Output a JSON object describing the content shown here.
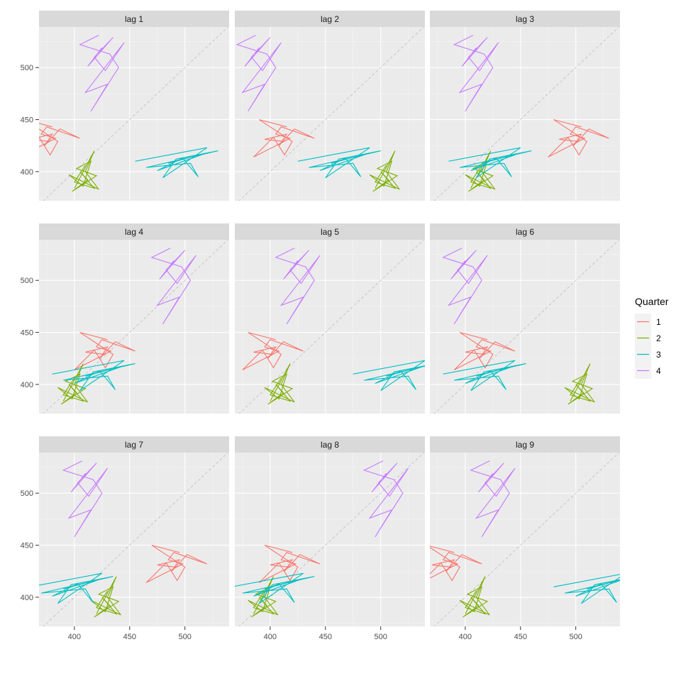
{
  "chart_data": {
    "type": "line",
    "facet_layout": "3x3",
    "panels": [
      "lag 1",
      "lag 2",
      "lag 3",
      "lag 4",
      "lag 5",
      "lag 6",
      "lag 7",
      "lag 8",
      "lag 9"
    ],
    "x_ticks": [
      400,
      450,
      500
    ],
    "y_ticks": [
      400,
      450,
      500
    ],
    "xlim": [
      368,
      540
    ],
    "ylim": [
      372,
      539
    ],
    "reference_line": "y = x (dashed grey)",
    "legend": {
      "title": "Quarter",
      "placement": "right",
      "entries": [
        {
          "name": "1",
          "color": "#F8766D"
        },
        {
          "name": "2",
          "color": "#7CAE00"
        },
        {
          "name": "3",
          "color": "#00BFC4"
        },
        {
          "name": "4",
          "color": "#C77CFF"
        }
      ]
    },
    "series_by_quarter": {
      "1": {
        "xy": [
          [
            405,
            443
          ],
          [
            380,
            450
          ],
          [
            410,
            429
          ],
          [
            403,
            416
          ],
          [
            393,
            433
          ],
          [
            375,
            414
          ],
          [
            408,
            432
          ],
          [
            395,
            436
          ],
          [
            400,
            443
          ],
          [
            430,
            432
          ],
          [
            412,
            441
          ],
          [
            398,
            425
          ],
          [
            405,
            436
          ],
          [
            385,
            431
          ],
          [
            402,
            429
          ]
        ]
      },
      "2": {
        "xy": [
          [
            400,
            384
          ],
          [
            418,
            420
          ],
          [
            410,
            400
          ],
          [
            422,
            383
          ],
          [
            395,
            397
          ],
          [
            408,
            386
          ],
          [
            415,
            410
          ],
          [
            402,
            403
          ],
          [
            420,
            396
          ],
          [
            398,
            381
          ],
          [
            412,
            392
          ],
          [
            405,
            400
          ],
          [
            418,
            384
          ],
          [
            400,
            390
          ],
          [
            410,
            406
          ]
        ]
      },
      "3": {
        "xy": [
          [
            455,
            410
          ],
          [
            520,
            423
          ],
          [
            480,
            394
          ],
          [
            492,
            412
          ],
          [
            530,
            420
          ],
          [
            465,
            404
          ],
          [
            505,
            408
          ],
          [
            512,
            395
          ],
          [
            498,
            413
          ],
          [
            475,
            401
          ],
          [
            520,
            418
          ],
          [
            485,
            408
          ]
        ]
      },
      "4": {
        "xy": [
          [
            422,
            531
          ],
          [
            405,
            522
          ],
          [
            432,
            513
          ],
          [
            440,
            500
          ],
          [
            415,
            458
          ],
          [
            430,
            484
          ],
          [
            410,
            476
          ],
          [
            445,
            524
          ],
          [
            428,
            497
          ],
          [
            418,
            510
          ],
          [
            435,
            529
          ],
          [
            412,
            501
          ],
          [
            425,
            519
          ]
        ]
      }
    },
    "panel_series": [
      {
        "1": {
          "x": [
            -25,
            0
          ],
          "y": [
            0,
            0
          ]
        },
        "2": {
          "x": [
            0,
            0
          ],
          "y": [
            0,
            0
          ]
        },
        "3": {
          "x": [
            0,
            0
          ],
          "y": [
            0,
            0
          ]
        },
        "4": {
          "x": [
            0,
            0
          ],
          "y": [
            0,
            0
          ]
        }
      },
      {
        "1": {
          "x": [
            10,
            0
          ],
          "y": [
            0,
            0
          ]
        },
        "2": {
          "x": [
            95,
            0
          ],
          "y": [
            0,
            0
          ]
        },
        "3": {
          "x": [
            -30,
            15
          ],
          "y": [
            0,
            0
          ]
        },
        "4": {
          "x": [
            -35,
            0
          ],
          "y": [
            0,
            0
          ]
        }
      },
      {
        "1": {
          "x": [
            100,
            0
          ],
          "y": [
            0,
            0
          ]
        },
        "2": {
          "x": [
            5,
            10
          ],
          "y": [
            0,
            0
          ]
        },
        "3": {
          "x": [
            -70,
            10
          ],
          "y": [
            0,
            0
          ]
        },
        "4": {
          "x": [
            -15,
            10
          ],
          "y": [
            0,
            0
          ]
        }
      },
      {
        "1": {
          "x": [
            25,
            0
          ],
          "y": [
            0,
            0
          ]
        },
        "2": {
          "x": [
            -10,
            0
          ],
          "y": [
            0,
            0
          ]
        },
        "3": {
          "x": [
            -75,
            0
          ],
          "y": [
            0,
            0
          ]
        },
        "4": {
          "x": [
            65,
            0
          ],
          "y": [
            0,
            0
          ]
        }
      },
      {
        "1": {
          "x": [
            0,
            0
          ],
          "y": [
            0,
            0
          ]
        },
        "2": {
          "x": [
            0,
            0
          ],
          "y": [
            0,
            0
          ]
        },
        "3": {
          "x": [
            20,
            0
          ],
          "y": [
            0,
            0
          ]
        },
        "4": {
          "x": [
            0,
            0
          ],
          "y": [
            0,
            0
          ]
        }
      },
      {
        "1": {
          "x": [
            15,
            0
          ],
          "y": [
            0,
            0
          ]
        },
        "2": {
          "x": [
            95,
            0
          ],
          "y": [
            0,
            0
          ]
        },
        "3": {
          "x": [
            -75,
            0
          ],
          "y": [
            0,
            0
          ]
        },
        "4": {
          "x": [
            -25,
            0
          ],
          "y": [
            0,
            0
          ]
        }
      },
      {
        "1": {
          "x": [
            90,
            0
          ],
          "y": [
            0,
            0
          ]
        },
        "2": {
          "x": [
            20,
            0
          ],
          "y": [
            0,
            0
          ]
        },
        "3": {
          "x": [
            -95,
            0
          ],
          "y": [
            0,
            0
          ]
        },
        "4": {
          "x": [
            -15,
            0
          ],
          "y": [
            0,
            0
          ]
        }
      },
      {
        "1": {
          "x": [
            15,
            0
          ],
          "y": [
            0,
            0
          ]
        },
        "2": {
          "x": [
            -15,
            0
          ],
          "y": [
            0,
            0
          ]
        },
        "3": {
          "x": [
            -90,
            0
          ],
          "y": [
            0,
            0
          ]
        },
        "4": {
          "x": [
            80,
            0
          ],
          "y": [
            0,
            0
          ]
        }
      },
      {
        "1": {
          "x": [
            -15,
            0
          ],
          "y": [
            0,
            0
          ]
        },
        "2": {
          "x": [
            0,
            0
          ],
          "y": [
            0,
            0
          ]
        },
        "3": {
          "x": [
            25,
            0
          ],
          "y": [
            0,
            0
          ]
        },
        "4": {
          "x": [
            0,
            0
          ],
          "y": [
            0,
            0
          ]
        }
      }
    ]
  }
}
